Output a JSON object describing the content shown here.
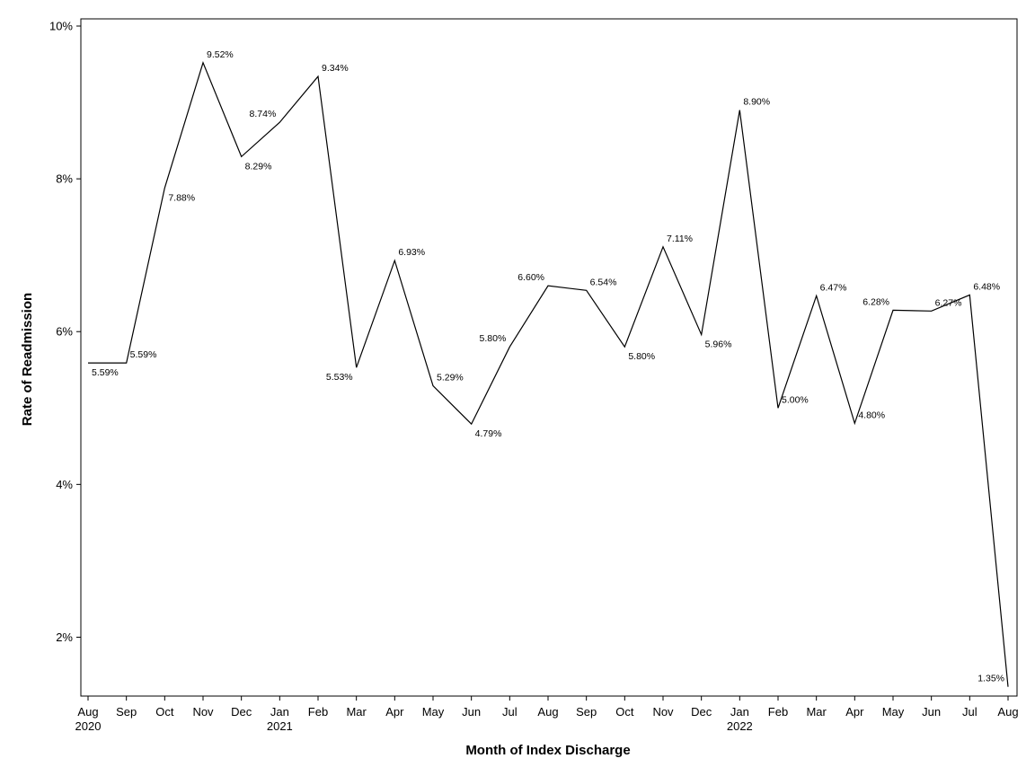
{
  "chart_data": {
    "type": "line",
    "title": "",
    "xlabel": "Month of Index Discharge",
    "ylabel": "Rate of Readmission",
    "ylim": [
      1.3,
      10.0
    ],
    "yticks": [
      2,
      4,
      6,
      8,
      10
    ],
    "ytick_labels": [
      "2%",
      "4%",
      "6%",
      "8%",
      "10%"
    ],
    "grid": false,
    "legend": "none",
    "categories": [
      "Aug",
      "Sep",
      "Oct",
      "Nov",
      "Dec",
      "Jan",
      "Feb",
      "Mar",
      "Apr",
      "May",
      "Jun",
      "Jul",
      "Aug",
      "Sep",
      "Oct",
      "Nov",
      "Dec",
      "Jan",
      "Feb",
      "Mar",
      "Apr",
      "May",
      "Jun",
      "Jul",
      "Aug"
    ],
    "year_labels": [
      "2020",
      "",
      "",
      "",
      "",
      "2021",
      "",
      "",
      "",
      "",
      "",
      "",
      "",
      "",
      "",
      "",
      "",
      "2022",
      "",
      "",
      "",
      "",
      "",
      "",
      ""
    ],
    "series": [
      {
        "name": "Rate of Readmission",
        "values": [
          5.59,
          5.59,
          7.88,
          9.52,
          8.29,
          8.74,
          9.34,
          5.53,
          6.93,
          5.29,
          4.79,
          5.8,
          6.6,
          6.54,
          5.8,
          7.11,
          5.96,
          8.9,
          5.0,
          6.47,
          4.8,
          6.28,
          6.27,
          6.48,
          1.35
        ],
        "labels": [
          "5.59%",
          "5.59%",
          "7.88%",
          "9.52%",
          "8.29%",
          "8.74%",
          "9.34%",
          "5.53%",
          "6.93%",
          "5.29%",
          "4.79%",
          "5.80%",
          "6.60%",
          "6.54%",
          "5.80%",
          "7.11%",
          "5.96%",
          "8.90%",
          "5.00%",
          "6.47%",
          "4.80%",
          "6.28%",
          "6.27%",
          "6.48%",
          "1.35%"
        ]
      }
    ]
  }
}
